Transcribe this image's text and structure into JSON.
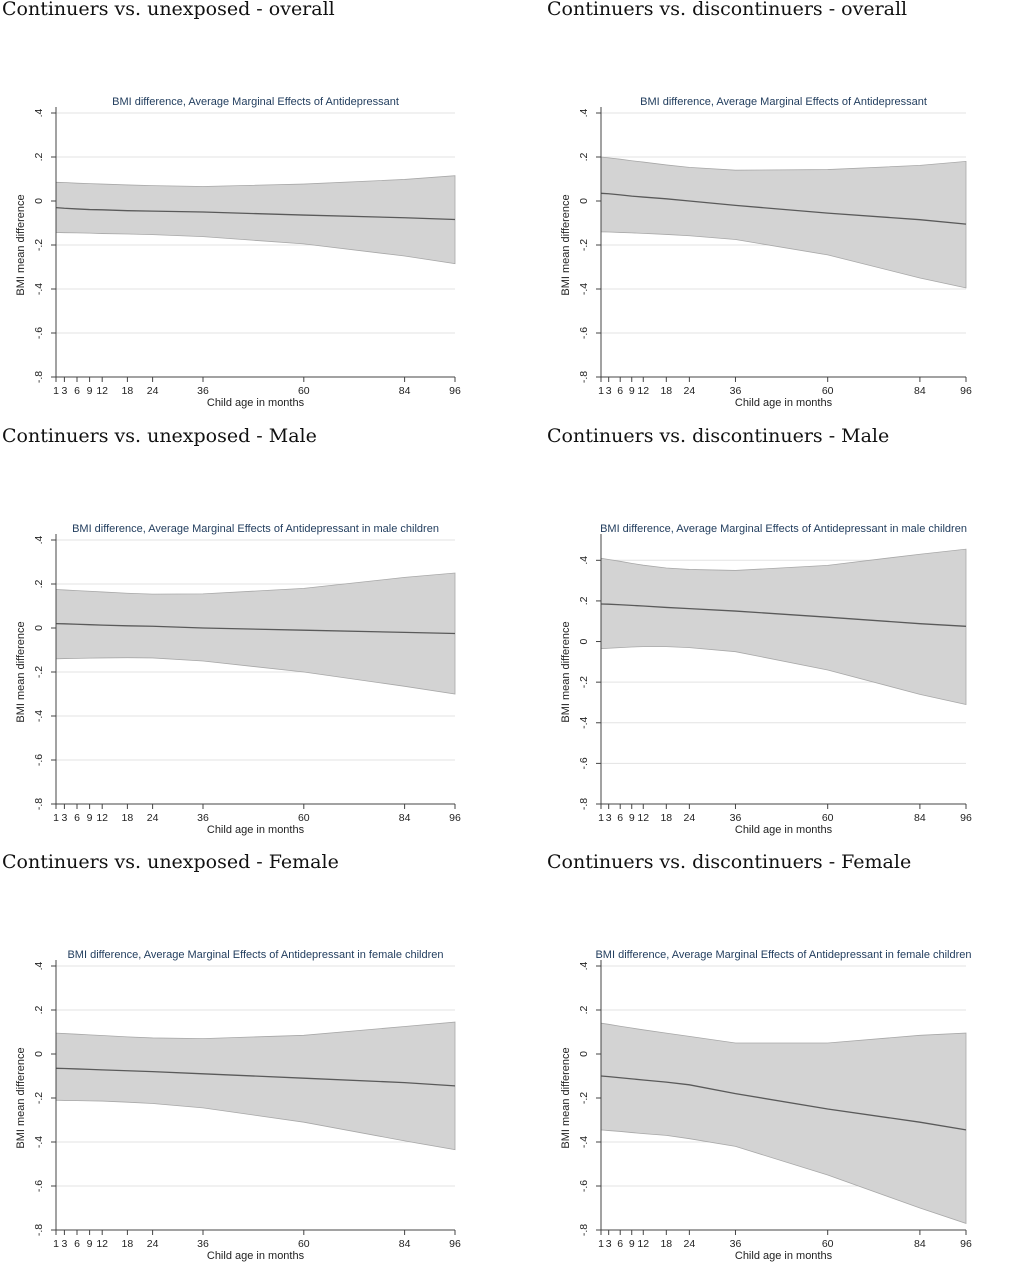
{
  "colors": {
    "band": "#d3d3d3",
    "line": "#5a5a5a",
    "grid": "#e3e3e3",
    "axis": "#444444",
    "title": "#1f3b5c"
  },
  "chart_data": [
    {
      "type": "area",
      "heading": "Continuers vs. unexposed - overall",
      "title": "BMI difference, Average Marginal Effects of Antidepressant",
      "xlabel": "Child age in months",
      "ylabel": "BMI mean difference",
      "x": [
        1,
        3,
        6,
        9,
        12,
        18,
        24,
        36,
        60,
        84,
        96
      ],
      "xticks": [
        "1",
        "3",
        "6",
        "9",
        "12",
        "18",
        "24",
        "36",
        "60",
        "84",
        "96"
      ],
      "yticks": [
        ".4",
        ".2",
        "0",
        "-.2",
        "-.4",
        "-.6",
        "-.8"
      ],
      "ylim": [
        -0.8,
        0.4
      ],
      "series": [
        {
          "values": [
            -0.03,
            -0.033,
            -0.036,
            -0.039,
            -0.04,
            -0.044,
            -0.046,
            -0.05,
            -0.064,
            -0.076,
            -0.084
          ]
        },
        {
          "values": [
            0.085,
            0.084,
            0.081,
            0.079,
            0.077,
            0.073,
            0.07,
            0.066,
            0.077,
            0.098,
            0.115
          ]
        },
        {
          "values": [
            -0.143,
            -0.144,
            -0.145,
            -0.146,
            -0.148,
            -0.15,
            -0.153,
            -0.162,
            -0.195,
            -0.25,
            -0.285
          ]
        }
      ]
    },
    {
      "type": "area",
      "heading": "Continuers vs. discontinuers - overall",
      "title": "BMI difference, Average Marginal Effects of Antidepressant",
      "xlabel": "Child age in months",
      "ylabel": "BMI mean difference",
      "x": [
        1,
        3,
        6,
        9,
        12,
        18,
        24,
        36,
        60,
        84,
        96
      ],
      "xticks": [
        "1",
        "3",
        "6",
        "9",
        "12",
        "18",
        "24",
        "36",
        "60",
        "84",
        "96"
      ],
      "yticks": [
        ".4",
        ".2",
        "0",
        "-.2",
        "-.4",
        "-.6",
        "-.8"
      ],
      "ylim": [
        -0.8,
        0.4
      ],
      "series": [
        {
          "values": [
            0.035,
            0.033,
            0.028,
            0.022,
            0.018,
            0.01,
            0.0,
            -0.02,
            -0.055,
            -0.085,
            -0.105
          ]
        },
        {
          "values": [
            0.2,
            0.196,
            0.19,
            0.183,
            0.177,
            0.164,
            0.153,
            0.14,
            0.143,
            0.162,
            0.18
          ]
        },
        {
          "values": [
            -0.14,
            -0.141,
            -0.143,
            -0.145,
            -0.147,
            -0.152,
            -0.158,
            -0.175,
            -0.245,
            -0.35,
            -0.395
          ]
        }
      ]
    },
    {
      "type": "area",
      "heading": "Continuers vs. unexposed - Male",
      "title": "BMI difference, Average Marginal Effects of Antidepressant in male children",
      "xlabel": "Child age in months",
      "ylabel": "BMI mean difference",
      "x": [
        1,
        3,
        6,
        9,
        12,
        18,
        24,
        36,
        60,
        84,
        96
      ],
      "xticks": [
        "1",
        "3",
        "6",
        "9",
        "12",
        "18",
        "24",
        "36",
        "60",
        "84",
        "96"
      ],
      "yticks": [
        ".4",
        ".2",
        "0",
        "-.2",
        "-.4",
        "-.6",
        "-.8"
      ],
      "ylim": [
        -0.8,
        0.4
      ],
      "series": [
        {
          "values": [
            0.02,
            0.019,
            0.017,
            0.015,
            0.013,
            0.01,
            0.008,
            0.0,
            -0.01,
            -0.02,
            -0.025
          ]
        },
        {
          "values": [
            0.175,
            0.173,
            0.17,
            0.167,
            0.164,
            0.158,
            0.154,
            0.155,
            0.18,
            0.23,
            0.25
          ]
        },
        {
          "values": [
            -0.14,
            -0.139,
            -0.138,
            -0.137,
            -0.136,
            -0.135,
            -0.136,
            -0.15,
            -0.2,
            -0.265,
            -0.3
          ]
        }
      ]
    },
    {
      "type": "area",
      "heading": "Continuers vs. discontinuers - Male",
      "title": "BMI difference, Average Marginal Effects of Antidepressant in male children",
      "xlabel": "Child age in months",
      "ylabel": "BMI mean difference",
      "x": [
        1,
        3,
        6,
        9,
        12,
        18,
        24,
        36,
        60,
        84,
        96
      ],
      "xticks": [
        "1",
        "3",
        "6",
        "9",
        "12",
        "18",
        "24",
        "36",
        "60",
        "84",
        "96"
      ],
      "yticks": [
        ".4",
        ".2",
        "0",
        "-.2",
        "-.4",
        "-.6",
        "-.8"
      ],
      "ylim": [
        -0.8,
        0.5
      ],
      "series": [
        {
          "values": [
            0.185,
            0.184,
            0.181,
            0.178,
            0.175,
            0.168,
            0.162,
            0.15,
            0.12,
            0.088,
            0.075
          ]
        },
        {
          "values": [
            0.41,
            0.404,
            0.395,
            0.385,
            0.376,
            0.362,
            0.355,
            0.35,
            0.375,
            0.43,
            0.455
          ]
        },
        {
          "values": [
            -0.035,
            -0.033,
            -0.03,
            -0.027,
            -0.025,
            -0.025,
            -0.03,
            -0.05,
            -0.14,
            -0.26,
            -0.31
          ]
        }
      ]
    },
    {
      "type": "area",
      "heading": "Continuers vs. unexposed - Female",
      "title": "BMI difference, Average Marginal Effects of Antidepressant in female children",
      "xlabel": "Child age in months",
      "ylabel": "BMI mean difference",
      "x": [
        1,
        3,
        6,
        9,
        12,
        18,
        24,
        36,
        60,
        84,
        96
      ],
      "xticks": [
        "1",
        "3",
        "6",
        "9",
        "12",
        "18",
        "24",
        "36",
        "60",
        "84",
        "96"
      ],
      "yticks": [
        ".4",
        ".2",
        "0",
        "-.2",
        "-.4",
        "-.6",
        "-.8"
      ],
      "ylim": [
        -0.8,
        0.4
      ],
      "series": [
        {
          "values": [
            -0.065,
            -0.066,
            -0.068,
            -0.07,
            -0.072,
            -0.076,
            -0.08,
            -0.09,
            -0.11,
            -0.13,
            -0.145
          ]
        },
        {
          "values": [
            0.095,
            0.093,
            0.09,
            0.087,
            0.084,
            0.078,
            0.073,
            0.07,
            0.085,
            0.125,
            0.145
          ]
        },
        {
          "values": [
            -0.21,
            -0.211,
            -0.212,
            -0.213,
            -0.214,
            -0.219,
            -0.225,
            -0.245,
            -0.31,
            -0.395,
            -0.435
          ]
        }
      ]
    },
    {
      "type": "area",
      "heading": "Continuers vs. discontinuers - Female",
      "title": "BMI difference, Average Marginal Effects of Antidepressant in female children",
      "xlabel": "Child age in months",
      "ylabel": "BMI mean difference",
      "x": [
        1,
        3,
        6,
        9,
        12,
        18,
        24,
        36,
        60,
        84,
        96
      ],
      "xticks": [
        "1",
        "3",
        "6",
        "9",
        "12",
        "18",
        "24",
        "36",
        "60",
        "84",
        "96"
      ],
      "yticks": [
        ".4",
        ".2",
        "0",
        "-.2",
        "-.4",
        "-.6",
        "-.8"
      ],
      "ylim": [
        -0.8,
        0.4
      ],
      "series": [
        {
          "values": [
            -0.1,
            -0.103,
            -0.108,
            -0.113,
            -0.118,
            -0.128,
            -0.14,
            -0.18,
            -0.25,
            -0.31,
            -0.345
          ]
        },
        {
          "values": [
            0.14,
            0.135,
            0.126,
            0.118,
            0.11,
            0.095,
            0.08,
            0.05,
            0.05,
            0.085,
            0.095
          ]
        },
        {
          "values": [
            -0.345,
            -0.348,
            -0.352,
            -0.357,
            -0.362,
            -0.37,
            -0.385,
            -0.42,
            -0.55,
            -0.7,
            -0.77
          ]
        }
      ]
    }
  ]
}
